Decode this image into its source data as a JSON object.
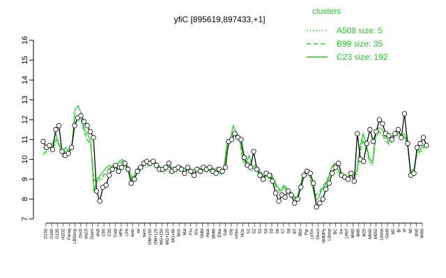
{
  "chart_data": {
    "type": "line",
    "title": "yfiC [895619,897433,+1]",
    "ylim": [
      7,
      16
    ],
    "yticks": [
      7,
      8,
      9,
      10,
      11,
      12,
      13,
      14,
      15,
      16
    ],
    "legend": {
      "title": "clusters",
      "placement": "top-right",
      "color": "#22cc22",
      "entries": [
        {
          "label": "A508 size: 5",
          "style": "dotted"
        },
        {
          "label": "B99 size: 35",
          "style": "dashed"
        },
        {
          "label": "C23 size: 192",
          "style": "solid"
        }
      ]
    },
    "xtick_labels": [
      "G150",
      "G180",
      "G135",
      "H2O2",
      "Paraq",
      "LBGexp",
      "Oxctl",
      "dia15",
      "Diami",
      "dia5",
      "C90",
      "C30",
      "Cold",
      "HPh",
      "LPh",
      "aero",
      "nit",
      "ferm",
      "OM+150",
      "OM+120",
      "MG+150",
      "MG+120",
      "MG+90",
      "M/G",
      "Mal",
      "Fru",
      "Glu",
      "SMM",
      "Heat",
      "BMM",
      "Etha",
      "Salt",
      "Gly",
      "HTim",
      "HOs",
      "S1",
      "S2",
      "S3",
      "S4",
      "S5",
      "S6",
      "S7",
      "S8",
      "BT",
      "B60",
      "Pyr",
      "LoTm",
      "Gluco",
      "SMMPy",
      "LBstat",
      "BC",
      "Sw",
      "LPhT",
      "M40t",
      "M45",
      "M20",
      "M040",
      "M050",
      "Lbstat",
      "GlcM",
      "M2",
      "BI",
      "Sf",
      "Mt",
      "dia0",
      "M0t5"
    ],
    "series": [
      {
        "style": "solid",
        "values": [
          10.6,
          10.5,
          10.7,
          10.8,
          11.3,
          10.7,
          10.3,
          10.6,
          10.4,
          10.5,
          12.5,
          12.7,
          12.3,
          11.5,
          11.3,
          10.9,
          8.4,
          8.9,
          9.2,
          9.4,
          9.6,
          9.7,
          9.5,
          9.6,
          9.9,
          10.0,
          9.8,
          9.6,
          8.9,
          9.3,
          9.6,
          9.7,
          9.8,
          9.8,
          9.9,
          9.9,
          9.8,
          9.6,
          9.5,
          9.6,
          9.6,
          9.6,
          9.5,
          9.7,
          9.6,
          9.5,
          9.6,
          9.4,
          9.5,
          9.6,
          9.5,
          9.6,
          9.5,
          9.6,
          9.5,
          9.6,
          9.4,
          9.5,
          10.8,
          11.0,
          11.7,
          11.3,
          11.1,
          10.3,
          9.8,
          10.2,
          9.6,
          9.7,
          9.5,
          9.3,
          9.1,
          9.2,
          9.3,
          8.9,
          8.6,
          8.4,
          8.7,
          8.5,
          8.4,
          8.2,
          8.0,
          8.6,
          9.2,
          9.5,
          9.3,
          8.6,
          7.9,
          8.1,
          8.5,
          8.7,
          9.0,
          9.6,
          9.8,
          9.5,
          9.3,
          9.2,
          9.1,
          9.3,
          9.2,
          9.4,
          10.6,
          11.3,
          10.8,
          10.0,
          9.9,
          11.4,
          11.6,
          11.5,
          11.2,
          10.9,
          11.1,
          11.4,
          11.5,
          11.2,
          11.3,
          10.9,
          9.2,
          9.4,
          10.4,
          10.5,
          10.7,
          10.8
        ],
        "markers": [
          10.9,
          10.6,
          10.7,
          10.5,
          11.5,
          11.7,
          10.4,
          10.2,
          10.3,
          10.6,
          11.7,
          12.1,
          12.2,
          11.9,
          11.7,
          11.4,
          11.1,
          8.4,
          7.9,
          8.6,
          8.7,
          9.2,
          9.5,
          9.7,
          9.4,
          9.6,
          9.8,
          9.5,
          8.8,
          9.0,
          9.4,
          9.6,
          9.8,
          9.9,
          9.8,
          9.9,
          9.7,
          9.5,
          9.5,
          9.6,
          9.8,
          9.4,
          9.5,
          9.6,
          9.5,
          9.3,
          9.6,
          9.4,
          9.2,
          9.5,
          9.4,
          9.6,
          9.5,
          9.6,
          9.4,
          9.3,
          9.5,
          9.4,
          9.6,
          10.9,
          11.0,
          11.3,
          11.1,
          11.0,
          10.1,
          9.7,
          9.6,
          10.4,
          9.5,
          9.2,
          9.0,
          9.3,
          9.2,
          8.9,
          8.3,
          7.9,
          8.2,
          8.1,
          8.4,
          8.2,
          7.8,
          8.0,
          8.6,
          9.2,
          9.4,
          9.3,
          8.8,
          7.6,
          7.8,
          8.0,
          8.5,
          8.8,
          9.3,
          9.6,
          9.8,
          9.2,
          9.1,
          9.0,
          9.3,
          8.9,
          11.3,
          10.0,
          9.9,
          10.8,
          11.5,
          10.9,
          11.4,
          12.0,
          11.8,
          11.3,
          11.2,
          11.0,
          11.3,
          11.5,
          11.1,
          12.3,
          10.8,
          9.2,
          9.3,
          10.6,
          10.8,
          11.1,
          10.7
        ]
      },
      {
        "style": "dashed",
        "values": [
          10.3,
          10.4,
          10.6,
          10.5,
          11.0,
          10.8,
          10.2,
          10.4,
          10.5,
          10.6,
          12.0,
          12.2,
          12.0,
          11.4,
          11.0,
          10.8,
          8.9,
          9.1,
          9.0,
          9.2,
          9.4,
          9.6,
          9.7,
          9.5,
          9.8,
          9.9,
          9.7,
          9.5,
          9.1,
          9.2,
          9.4,
          9.6,
          9.7,
          9.7,
          9.8,
          9.8,
          9.6,
          9.5,
          9.4,
          9.5,
          9.4,
          9.5,
          9.4,
          9.6,
          9.5,
          9.4,
          9.5,
          9.3,
          9.4,
          9.5,
          9.4,
          9.5,
          9.4,
          9.5,
          9.4,
          9.5,
          9.3,
          9.4,
          10.5,
          10.9,
          11.4,
          11.2,
          11.0,
          10.0,
          9.7,
          9.9,
          9.5,
          9.6,
          9.4,
          9.2,
          9.1,
          9.0,
          9.2,
          8.8,
          8.5,
          8.4,
          8.6,
          8.4,
          8.3,
          8.1,
          8.0,
          8.5,
          9.0,
          9.3,
          9.2,
          8.7,
          8.2,
          8.3,
          8.6,
          8.8,
          9.1,
          9.5,
          9.6,
          9.4,
          9.2,
          9.1,
          9.0,
          9.2,
          9.1,
          9.3,
          10.4,
          11.0,
          10.6,
          9.9,
          9.8,
          11.2,
          11.4,
          11.3,
          11.0,
          10.8,
          11.0,
          11.2,
          11.3,
          11.1,
          11.2,
          10.8,
          9.4,
          9.5,
          10.3,
          10.4,
          10.6,
          10.7
        ]
      },
      {
        "style": "dotted",
        "values": [
          10.2,
          10.3,
          10.5,
          10.4,
          10.9,
          10.7,
          10.1,
          10.3,
          10.4,
          10.5,
          11.8,
          12.0,
          11.9,
          11.3,
          10.9,
          10.7,
          9.0,
          9.0,
          8.9,
          9.1,
          9.3,
          9.5,
          9.6,
          9.4,
          9.7,
          9.8,
          9.6,
          9.4,
          9.2,
          9.1,
          9.3,
          9.5,
          9.6,
          9.6,
          9.7,
          9.7,
          9.5,
          9.4,
          9.3,
          9.4,
          9.3,
          9.4,
          9.3,
          9.5,
          9.4,
          9.3,
          9.4,
          9.2,
          9.3,
          9.4,
          9.3,
          9.4,
          9.3,
          9.4,
          9.3,
          9.4,
          9.2,
          9.3,
          10.4,
          10.8,
          11.3,
          11.1,
          10.9,
          9.9,
          9.6,
          9.8,
          9.4,
          9.5,
          9.3,
          9.1,
          9.0,
          8.9,
          9.1,
          8.7,
          8.4,
          8.3,
          8.5,
          8.3,
          8.2,
          8.0,
          7.9,
          8.4,
          8.9,
          9.2,
          9.1,
          8.6,
          8.1,
          8.2,
          8.5,
          8.7,
          9.0,
          9.4,
          9.5,
          9.3,
          9.1,
          9.0,
          8.9,
          9.1,
          9.0,
          9.2,
          10.3,
          10.9,
          10.5,
          9.8,
          9.7,
          11.1,
          11.3,
          11.2,
          10.9,
          10.7,
          10.9,
          11.1,
          11.2,
          11.0,
          11.1,
          10.7,
          9.3,
          9.4,
          10.2,
          10.3,
          10.5,
          10.6
        ]
      }
    ]
  }
}
